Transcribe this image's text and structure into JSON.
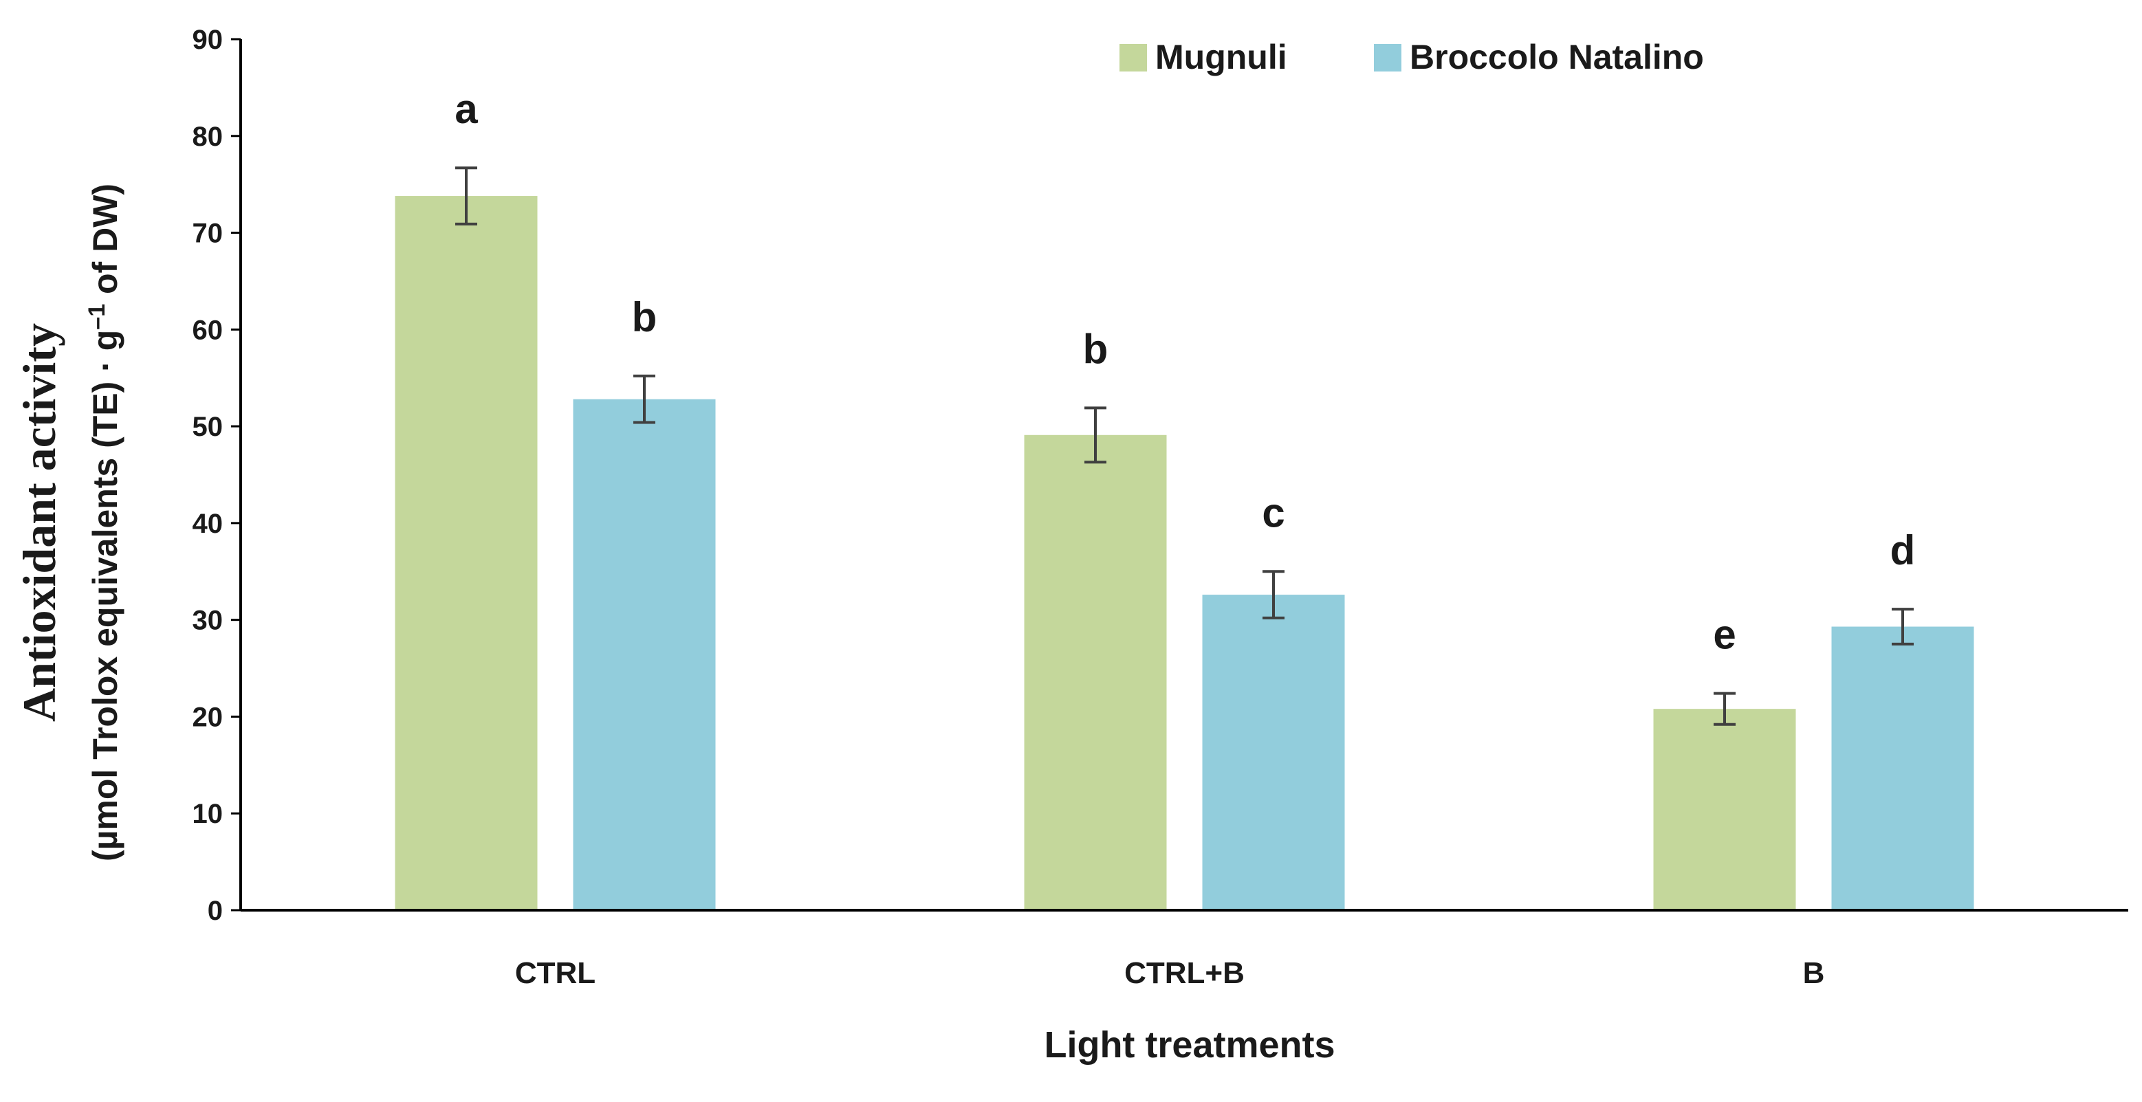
{
  "chart_data": {
    "type": "bar",
    "title": "",
    "xlabel": "Light treatments",
    "ylabel": [
      "Antioxidant activity",
      "(µmol Trolox equivalents (TE) · g",
      "–1",
      " of DW)"
    ],
    "ylim": [
      0,
      90
    ],
    "yticks": [
      0,
      10,
      20,
      30,
      40,
      50,
      60,
      70,
      80,
      90
    ],
    "categories": [
      "CTRL",
      "CTRL+B",
      "B"
    ],
    "legend_position": "top-right",
    "series": [
      {
        "name": "Mugnuli",
        "color": "#c4d79b",
        "values": [
          73.8,
          49.1,
          20.8
        ],
        "errors": [
          2.9,
          2.8,
          1.6
        ],
        "letters": [
          "a",
          "b",
          "e"
        ]
      },
      {
        "name": "Broccolo Natalino",
        "color": "#92cddc",
        "values": [
          52.8,
          32.6,
          29.3
        ],
        "errors": [
          2.4,
          2.4,
          1.8
        ],
        "letters": [
          "b",
          "c",
          "d"
        ]
      }
    ]
  }
}
